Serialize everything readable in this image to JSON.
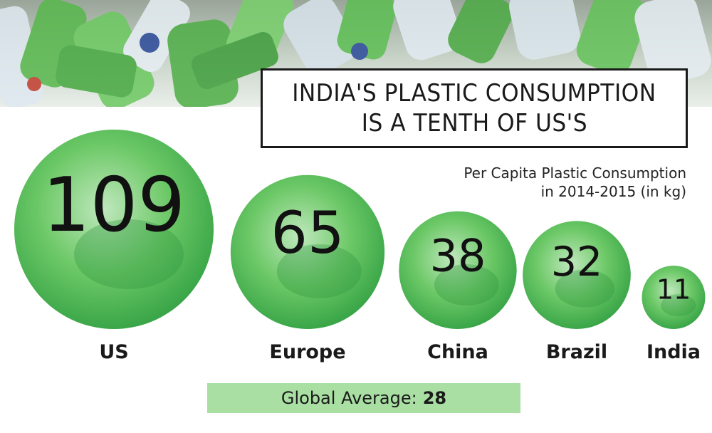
{
  "title_lines": [
    "INDIA'S PLASTIC CONSUMPTION",
    "IS A TENTH OF US'S"
  ],
  "subtitle_lines": [
    "Per Capita Plastic Consumption",
    "in 2014-2015 (in kg)"
  ],
  "global_average": {
    "label": "Global Average:",
    "value": "28"
  },
  "colors": {
    "bubble_green": "#3aa648",
    "bubble_light": "#bfe8bd",
    "avg_band": "#a9dfa3"
  },
  "chart_data": {
    "type": "bubble",
    "title": "INDIA'S PLASTIC CONSUMPTION IS A TENTH OF US'S",
    "subtitle": "Per Capita Plastic Consumption in 2014-2015 (in kg)",
    "categories": [
      "US",
      "Europe",
      "China",
      "Brazil",
      "India"
    ],
    "values": [
      109,
      65,
      38,
      32,
      11
    ],
    "reference_line": {
      "label": "Global Average:",
      "value": 28
    }
  }
}
